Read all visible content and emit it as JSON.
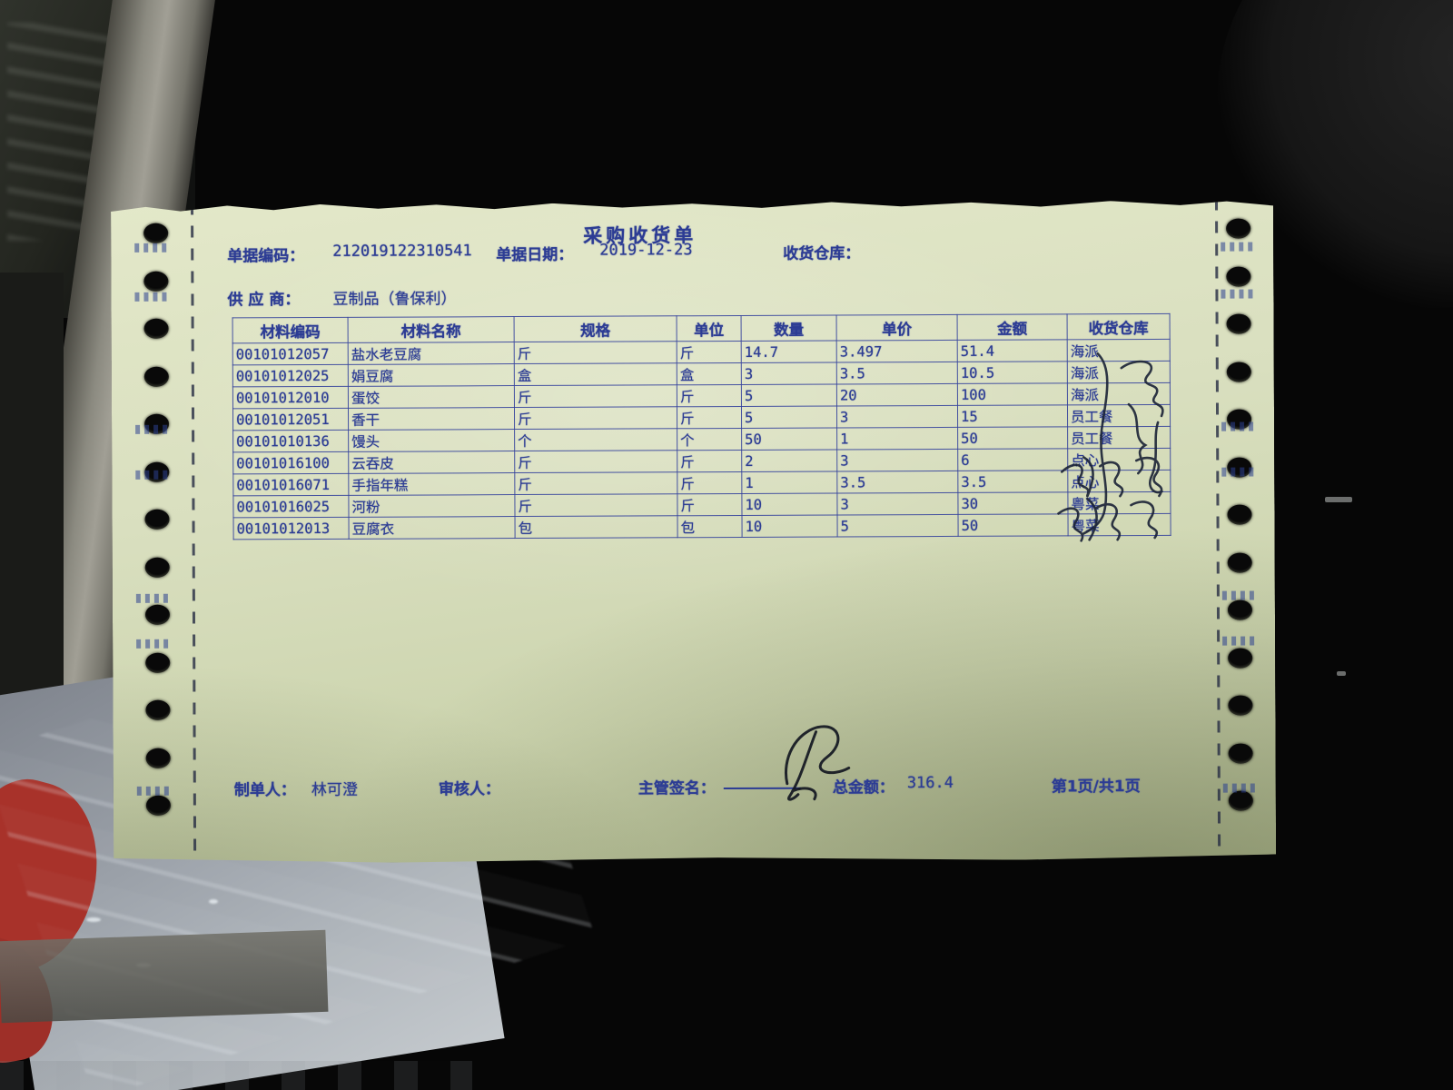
{
  "document": {
    "title": "采购收货单",
    "fields": {
      "doc_no_label": "单据编码：",
      "doc_no": "212019122310541",
      "date_label": "单据日期：",
      "date": "2019-12-23",
      "warehouse_label": "收货仓库：",
      "supplier_label": "供 应 商：",
      "supplier": "豆制品（鲁保利）"
    },
    "table": {
      "headers": [
        "材料编码",
        "材料名称",
        "规格",
        "单位",
        "数量",
        "单价",
        "金额",
        "收货仓库"
      ],
      "rows": [
        [
          "00101012057",
          "盐水老豆腐",
          "斤",
          "斤",
          "14.7",
          "3.497",
          "51.4",
          "海派"
        ],
        [
          "00101012025",
          "娟豆腐",
          "盒",
          "盒",
          "3",
          "3.5",
          "10.5",
          "海派"
        ],
        [
          "00101012010",
          "蛋饺",
          "斤",
          "斤",
          "5",
          "20",
          "100",
          "海派"
        ],
        [
          "00101012051",
          "香干",
          "斤",
          "斤",
          "5",
          "3",
          "15",
          "员工餐"
        ],
        [
          "00101010136",
          "馒头",
          "个",
          "个",
          "50",
          "1",
          "50",
          "员工餐"
        ],
        [
          "00101016100",
          "云吞皮",
          "斤",
          "斤",
          "2",
          "3",
          "6",
          "点心"
        ],
        [
          "00101016071",
          "手指年糕",
          "斤",
          "斤",
          "1",
          "3.5",
          "3.5",
          "点心"
        ],
        [
          "00101016025",
          "河粉",
          "斤",
          "斤",
          "10",
          "3",
          "30",
          "粤菜"
        ],
        [
          "00101012013",
          "豆腐衣",
          "包",
          "包",
          "10",
          "5",
          "50",
          "粤菜"
        ]
      ]
    },
    "footer": {
      "maker_label": "制单人：",
      "maker": "林可澄",
      "auditor_label": "审核人：",
      "supervisor_label": "主管签名：",
      "total_label": "总金额：",
      "total": "316.4",
      "page_info": "第1页/共1页"
    },
    "ink_color": "#2c3c94",
    "paper_color": "#d9dfbf"
  }
}
